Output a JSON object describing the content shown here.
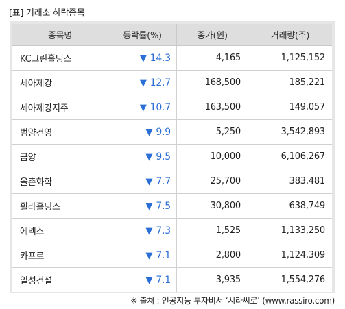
{
  "title": "[표] 거래소 하락종목",
  "table": {
    "headers": [
      "종목명",
      "등락률(%)",
      "종가(원)",
      "거래량(주)"
    ],
    "rows": [
      {
        "name": "KC그린홀딩스",
        "change": "14.3",
        "close": "4,165",
        "volume": "1,125,152"
      },
      {
        "name": "세아제강",
        "change": "12.7",
        "close": "168,500",
        "volume": "185,221"
      },
      {
        "name": "세아제강지주",
        "change": "10.7",
        "close": "163,500",
        "volume": "149,057"
      },
      {
        "name": "범양건영",
        "change": "9.9",
        "close": "5,250",
        "volume": "3,542,893"
      },
      {
        "name": "금양",
        "change": "9.5",
        "close": "10,000",
        "volume": "6,106,267"
      },
      {
        "name": "율촌화학",
        "change": "7.7",
        "close": "25,700",
        "volume": "383,481"
      },
      {
        "name": "휠라홀딩스",
        "change": "7.5",
        "close": "30,800",
        "volume": "638,749"
      },
      {
        "name": "에넥스",
        "change": "7.3",
        "close": "1,525",
        "volume": "1,133,250"
      },
      {
        "name": "카프로",
        "change": "7.1",
        "close": "2,800",
        "volume": "1,124,309"
      },
      {
        "name": "일성건설",
        "change": "7.1",
        "close": "3,935",
        "volume": "1,554,276"
      }
    ]
  },
  "down_arrow": "▼",
  "down_icon_name": "down-triangle-icon",
  "accent_color": "#2b6fd6",
  "source": "※ 출처 : 인공지능 투자비서 ‘시라씨로’ (www.rassiro.com)"
}
